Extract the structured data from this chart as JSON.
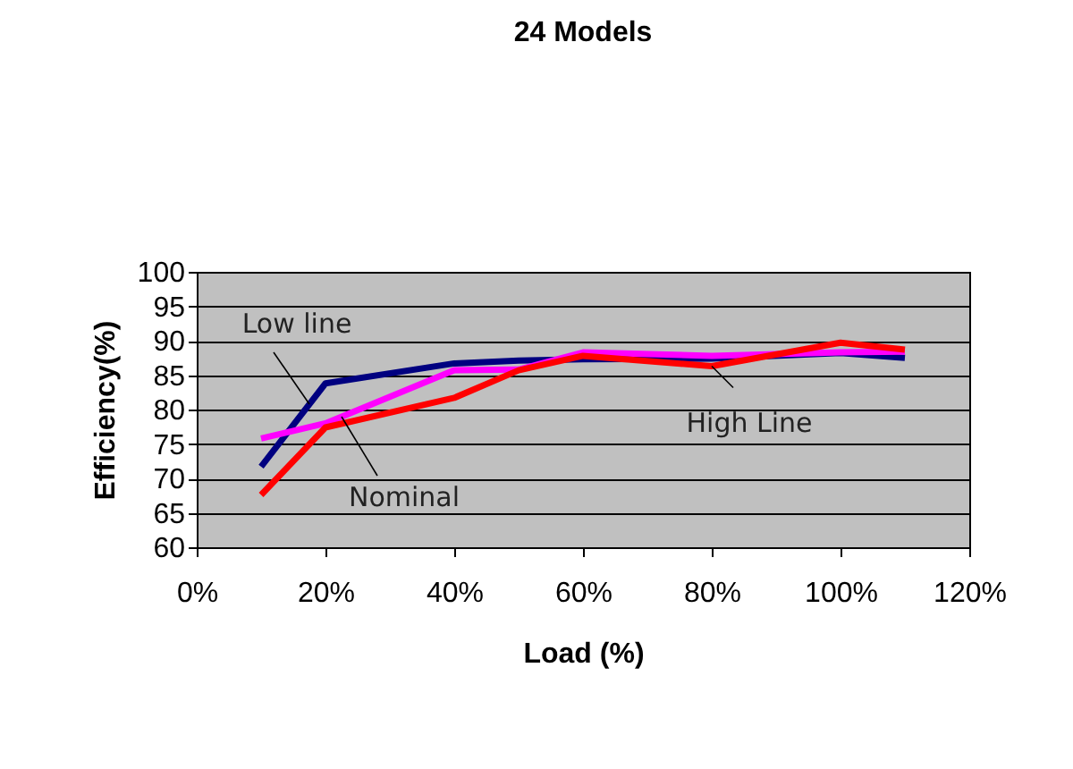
{
  "chart_data": {
    "type": "line",
    "title": "24 Models",
    "xlabel": "Load (%)",
    "ylabel": "Efficiency(%)",
    "x": [
      0.1,
      0.2,
      0.4,
      0.5,
      0.6,
      0.8,
      1.0,
      1.1
    ],
    "series": [
      {
        "name": "Low line",
        "color": "#000080",
        "values": [
          71.7,
          83.8,
          86.7,
          87.1,
          87.3,
          87.4,
          88.2,
          87.5
        ]
      },
      {
        "name": "Nominal",
        "color": "#ff00ff",
        "values": [
          75.8,
          78.0,
          85.7,
          85.8,
          88.3,
          87.8,
          88.3,
          88.4
        ]
      },
      {
        "name": "High Line",
        "color": "#ff0000",
        "values": [
          67.6,
          77.4,
          81.7,
          85.7,
          87.8,
          86.3,
          89.7,
          88.7
        ]
      }
    ],
    "xlim": [
      0,
      1.2
    ],
    "xticks": [
      {
        "value": 0,
        "label": "0%"
      },
      {
        "value": 0.2,
        "label": "20%"
      },
      {
        "value": 0.4,
        "label": "40%"
      },
      {
        "value": 0.6,
        "label": "60%"
      },
      {
        "value": 0.8,
        "label": "80%"
      },
      {
        "value": 1.0,
        "label": "100%"
      },
      {
        "value": 1.2,
        "label": "120%"
      }
    ],
    "ylim": [
      60,
      100
    ],
    "yticks": [
      60,
      65,
      70,
      75,
      80,
      85,
      90,
      95,
      100
    ],
    "grid": "y",
    "legend": false,
    "marker": "none",
    "line_style": "solid"
  }
}
